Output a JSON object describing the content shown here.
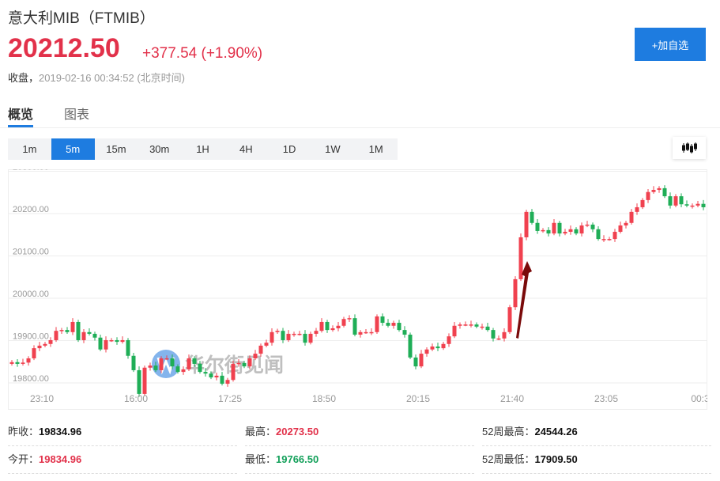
{
  "header": {
    "title": "意大利MIB（FTMIB）",
    "price": "20212.50",
    "change": "+377.54 (+1.90%)",
    "status_label": "收盘，",
    "timestamp": "2019-02-16 00:34:52 (北京时间)",
    "add_button": "+加自选"
  },
  "tabs": [
    {
      "label": "概览",
      "active": true
    },
    {
      "label": "图表",
      "active": false
    }
  ],
  "timeframes": [
    {
      "label": "1m"
    },
    {
      "label": "5m",
      "active": true
    },
    {
      "label": "15m"
    },
    {
      "label": "30m"
    },
    {
      "label": "1H"
    },
    {
      "label": "4H"
    },
    {
      "label": "1D"
    },
    {
      "label": "1W"
    },
    {
      "label": "1M"
    }
  ],
  "chart_type_icon": "candlestick-icon",
  "watermark": "华尔街见闻",
  "colors": {
    "up": "#f0414f",
    "down": "#1fae57",
    "accent": "#1e7ce0",
    "arrow": "#7a0a0a"
  },
  "chart_data": {
    "type": "candlestick",
    "y_ticks": [
      "20300.00",
      "20200.00",
      "20100.00",
      "20000.00",
      "19900.00",
      "19800.00"
    ],
    "y_tick_values": [
      20300,
      20200,
      20100,
      20000,
      19900,
      19800
    ],
    "x_ticks": [
      "23:10",
      "16:00",
      "17:25",
      "18:50",
      "20:15",
      "21:40",
      "23:05",
      "00:3"
    ],
    "ylim": [
      19750,
      20330
    ],
    "first_open": 19845,
    "closes": [
      19849,
      19845,
      19848,
      19858,
      19882,
      19888,
      19892,
      19901,
      19923,
      19925,
      19920,
      19944,
      19901,
      19920,
      19916,
      19907,
      19879,
      19901,
      19901,
      19897,
      19901,
      19864,
      19830,
      19774,
      19836,
      19841,
      19830,
      19858,
      19858,
      19839,
      19826,
      19832,
      19858,
      19845,
      19826,
      19822,
      19813,
      19817,
      19798,
      19807,
      19845,
      19847,
      19839,
      19858,
      19869,
      19888,
      19895,
      19920,
      19923,
      19901,
      19916,
      19916,
      19916,
      19895,
      19916,
      19923,
      19944,
      19925,
      19929,
      19935,
      19951,
      19953,
      19914,
      19920,
      19920,
      19920,
      19957,
      19942,
      19935,
      19942,
      19925,
      19914,
      19860,
      19839,
      19869,
      19879,
      19886,
      19882,
      19892,
      19910,
      19935,
      19938,
      19938,
      19938,
      19933,
      19933,
      19925,
      19905,
      19905,
      19920,
      19979,
      20045,
      20144,
      20204,
      20178,
      20159,
      20161,
      20153,
      20178,
      20153,
      20157,
      20163,
      20153,
      20172,
      20174,
      20163,
      20140,
      20140,
      20140,
      20157,
      20172,
      20178,
      20204,
      20215,
      20232,
      20251,
      20256,
      20260,
      20241,
      20219,
      20241,
      20222,
      20219,
      20219,
      20223,
      20215
    ]
  },
  "stats": [
    {
      "label": "昨收：",
      "value": "19834.96",
      "color": "blk"
    },
    {
      "label": "最高：",
      "value": "20273.50",
      "color": "red"
    },
    {
      "label": "52周最高：",
      "value": "24544.26",
      "color": "blk"
    },
    {
      "label": "今开：",
      "value": "19834.96",
      "color": "red"
    },
    {
      "label": "最低：",
      "value": "19766.50",
      "color": "green"
    },
    {
      "label": "52周最低：",
      "value": "17909.50",
      "color": "blk"
    }
  ]
}
